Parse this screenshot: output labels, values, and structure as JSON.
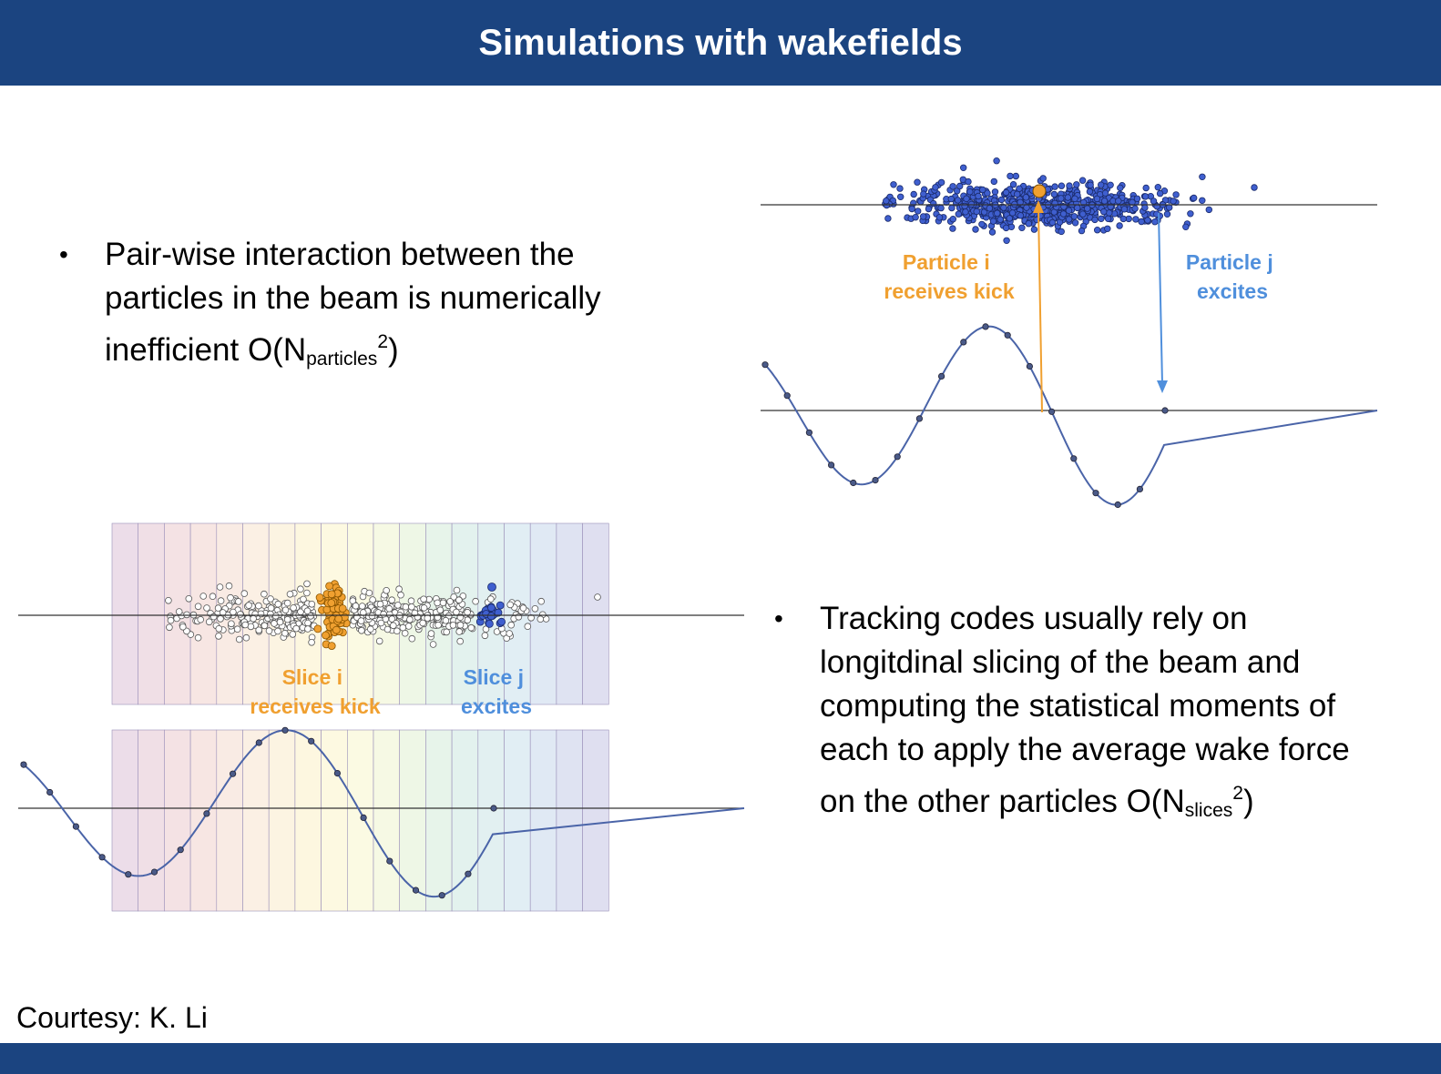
{
  "header": {
    "title": "Simulations with wakefields"
  },
  "bullets": [
    {
      "lines": [
        "Pair-wise interaction between the",
        "particles in the beam is numerically",
        "inefficient O(N"
      ],
      "sub": "particles",
      "sup": "2",
      "tail": ")"
    },
    {
      "lines": [
        "Tracking codes usually rely on",
        "longitdinal slicing of the beam and",
        "computing the statistical moments of",
        "each to apply the average wake force",
        "on the other particles O(N"
      ],
      "sub": "slices",
      "sup": "2",
      "tail": ")"
    }
  ],
  "figure_top": {
    "label_i": [
      "Particle i",
      "receives kick"
    ],
    "label_j": [
      "Particle j",
      "excites"
    ]
  },
  "figure_bottom": {
    "label_i": [
      "Slice i",
      "receives kick"
    ],
    "label_j": [
      "Slice j",
      "excites"
    ]
  },
  "colors": {
    "orange": "#f0a030",
    "blue": "#4f8fdc",
    "particle": "#3f5fcf",
    "wave": "#4a64a8"
  },
  "footer": {
    "courtesy": "Courtesy: K. Li"
  }
}
